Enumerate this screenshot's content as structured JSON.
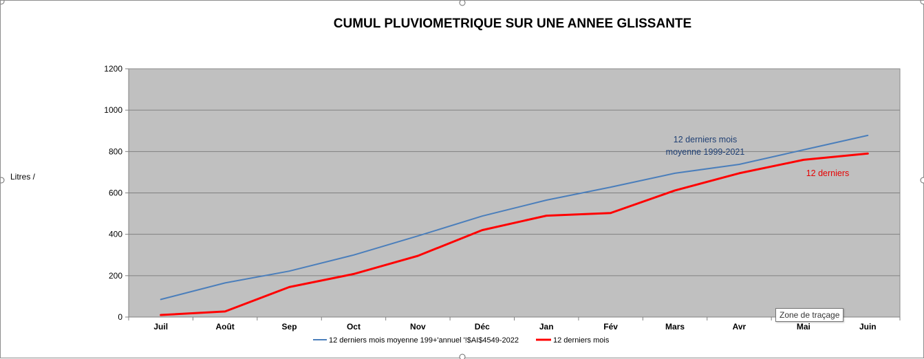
{
  "tooltip": "Zone de traçage",
  "chart_data": {
    "type": "line",
    "title": "CUMUL PLUVIOMETRIQUE SUR UNE ANNEE GLISSANTE",
    "ylabel": "Litres /",
    "xlabel": "",
    "categories": [
      "Juil",
      "Août",
      "Sep",
      "Oct",
      "Nov",
      "Déc",
      "Jan",
      "Fév",
      "Mars",
      "Avr",
      "Mai",
      "Juin"
    ],
    "ylim": [
      0,
      1200
    ],
    "yticks": [
      0,
      200,
      400,
      600,
      800,
      1000,
      1200
    ],
    "grid": true,
    "legend_position": "bottom",
    "plot_background": "#c0c0c0",
    "series": [
      {
        "name": "12 derniers mois moyenne 199+'annuel '!$AI$4549-2022",
        "color": "#4a7ebb",
        "values": [
          85,
          165,
          222,
          300,
          392,
          488,
          565,
          628,
          695,
          738,
          808,
          878
        ]
      },
      {
        "name": "12 derniers mois",
        "color": "#ff0000",
        "values": [
          10,
          27,
          145,
          208,
          296,
          420,
          490,
          503,
          612,
          695,
          760,
          790
        ]
      }
    ],
    "annotations": [
      {
        "lines": [
          "12 derniers mois",
          "moyenne 1999-2021"
        ],
        "color": "#1f3f73"
      },
      {
        "lines": [
          "12 derniers"
        ],
        "color": "#e60000"
      }
    ]
  }
}
